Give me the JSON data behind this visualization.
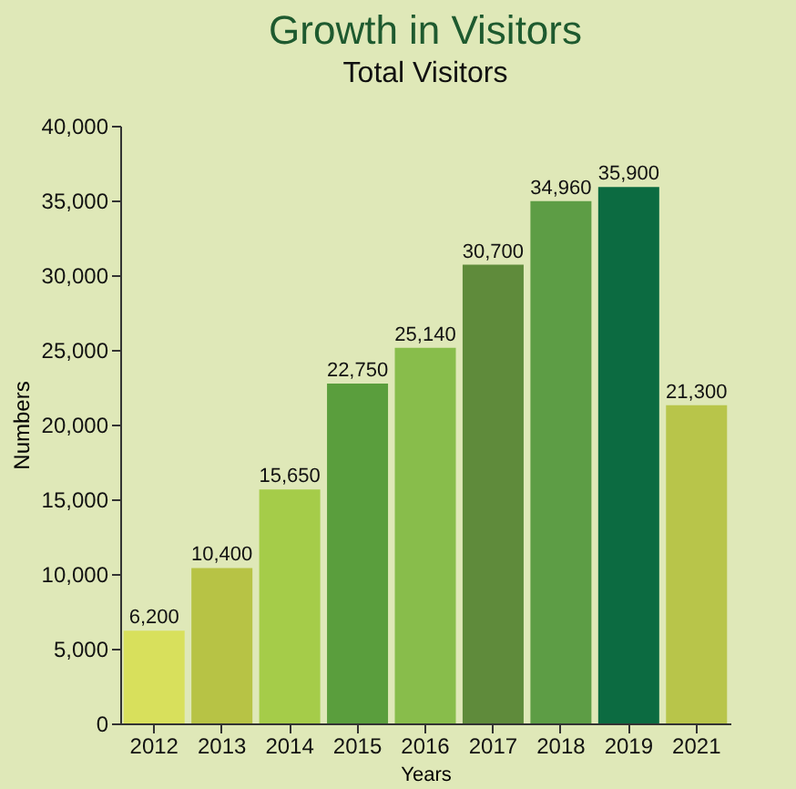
{
  "chart_data": {
    "type": "bar",
    "title": "Growth in Visitors",
    "subtitle": "Total Visitors",
    "xlabel": "Years",
    "ylabel": "Numbers",
    "categories": [
      "2012",
      "2013",
      "2014",
      "2015",
      "2016",
      "2017",
      "2018",
      "2019",
      "2021"
    ],
    "values": [
      6200,
      10400,
      15650,
      22750,
      25140,
      30700,
      34960,
      35900,
      21300
    ],
    "value_labels": [
      "6,200",
      "10,400",
      "15,650",
      "22,750",
      "25,140",
      "30,700",
      "34,960",
      "35,900",
      "21,300"
    ],
    "colors": [
      "#d8e05c",
      "#b7c345",
      "#a5cc49",
      "#5a9e3d",
      "#88bd4b",
      "#5f8b3b",
      "#5d9d45",
      "#0c6b41",
      "#b8c54a"
    ],
    "ylim": [
      0,
      40000
    ],
    "yticks": [
      0,
      {
        "value": 5000,
        "label": "5,000"
      },
      {
        "value": 10000,
        "label": "10,000"
      },
      {
        "value": 15000,
        "label": "15,000"
      },
      {
        "value": 20000,
        "label": "20,000"
      },
      {
        "value": 25000,
        "label": "25,000"
      },
      {
        "value": 30000,
        "label": "30,000"
      },
      {
        "value": 35000,
        "label": "35,000"
      },
      {
        "value": 40000,
        "label": "40,000"
      }
    ],
    "grid": false
  }
}
